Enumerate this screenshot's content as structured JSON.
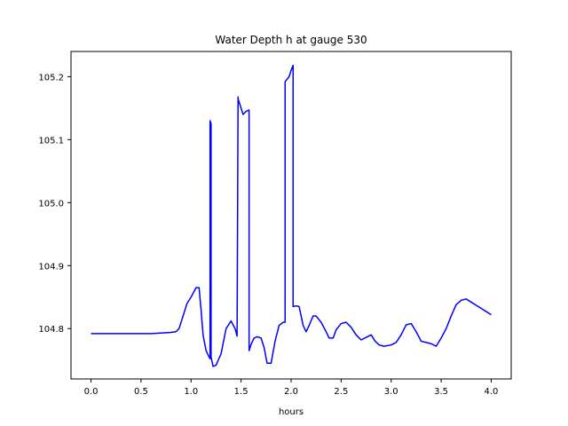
{
  "chart_data": {
    "type": "line",
    "title": "Water Depth h at gauge 530",
    "xlabel": "hours",
    "ylabel": "",
    "xlim": [
      -0.2,
      4.2
    ],
    "ylim": [
      104.72,
      105.24
    ],
    "xticks": [
      0.0,
      0.5,
      1.0,
      1.5,
      2.0,
      2.5,
      3.0,
      3.5,
      4.0
    ],
    "xtick_labels": [
      "0.0",
      "0.5",
      "1.0",
      "1.5",
      "2.0",
      "2.5",
      "3.0",
      "3.5",
      "4.0"
    ],
    "yticks": [
      104.8,
      104.9,
      105.0,
      105.1,
      105.2
    ],
    "ytick_labels": [
      "104.8",
      "104.9",
      "105.0",
      "105.1",
      "105.2"
    ],
    "grid": false,
    "series": [
      {
        "color": "#0000ff",
        "x": [
          0.0,
          0.3,
          0.6,
          0.7,
          0.8,
          0.85,
          0.88,
          0.92,
          0.96,
          1.0,
          1.05,
          1.08,
          1.1,
          1.12,
          1.15,
          1.18,
          1.19,
          1.19,
          1.2,
          1.2,
          1.22,
          1.25,
          1.3,
          1.35,
          1.4,
          1.44,
          1.46,
          1.47,
          1.47,
          1.5,
          1.52,
          1.55,
          1.58,
          1.58,
          1.6,
          1.63,
          1.66,
          1.7,
          1.73,
          1.76,
          1.8,
          1.84,
          1.88,
          1.92,
          1.93,
          1.94,
          1.94,
          1.98,
          2.0,
          2.02,
          2.02,
          2.05,
          2.08,
          2.1,
          2.12,
          2.15,
          2.18,
          2.22,
          2.25,
          2.3,
          2.35,
          2.38,
          2.42,
          2.45,
          2.5,
          2.55,
          2.6,
          2.65,
          2.7,
          2.75,
          2.8,
          2.84,
          2.88,
          2.93,
          3.0,
          3.05,
          3.1,
          3.15,
          3.2,
          3.25,
          3.3,
          3.35,
          3.4,
          3.45,
          3.5,
          3.55,
          3.6,
          3.65,
          3.7,
          3.75,
          3.8,
          3.85,
          3.9,
          3.95,
          4.0
        ],
        "y": [
          104.792,
          104.792,
          104.792,
          104.793,
          104.794,
          104.795,
          104.8,
          104.82,
          104.84,
          104.85,
          104.865,
          104.865,
          104.83,
          104.79,
          104.765,
          104.755,
          104.752,
          105.13,
          105.125,
          104.755,
          104.74,
          104.742,
          104.76,
          104.8,
          104.812,
          104.8,
          104.788,
          105.168,
          105.165,
          105.15,
          105.14,
          105.145,
          105.147,
          104.765,
          104.775,
          104.785,
          104.787,
          104.785,
          104.77,
          104.745,
          104.745,
          104.78,
          104.805,
          104.81,
          104.81,
          104.81,
          105.192,
          105.2,
          105.21,
          105.218,
          104.835,
          104.836,
          104.835,
          104.82,
          104.805,
          104.795,
          104.805,
          104.82,
          104.82,
          104.81,
          104.795,
          104.785,
          104.785,
          104.798,
          104.808,
          104.81,
          104.802,
          104.79,
          104.782,
          104.786,
          104.79,
          104.78,
          104.774,
          104.772,
          104.774,
          104.778,
          104.79,
          104.806,
          104.808,
          104.795,
          104.78,
          104.778,
          104.776,
          104.772,
          104.785,
          104.8,
          104.82,
          104.838,
          104.845,
          104.847,
          104.842,
          104.837,
          104.832,
          104.827,
          104.822
        ]
      }
    ]
  }
}
